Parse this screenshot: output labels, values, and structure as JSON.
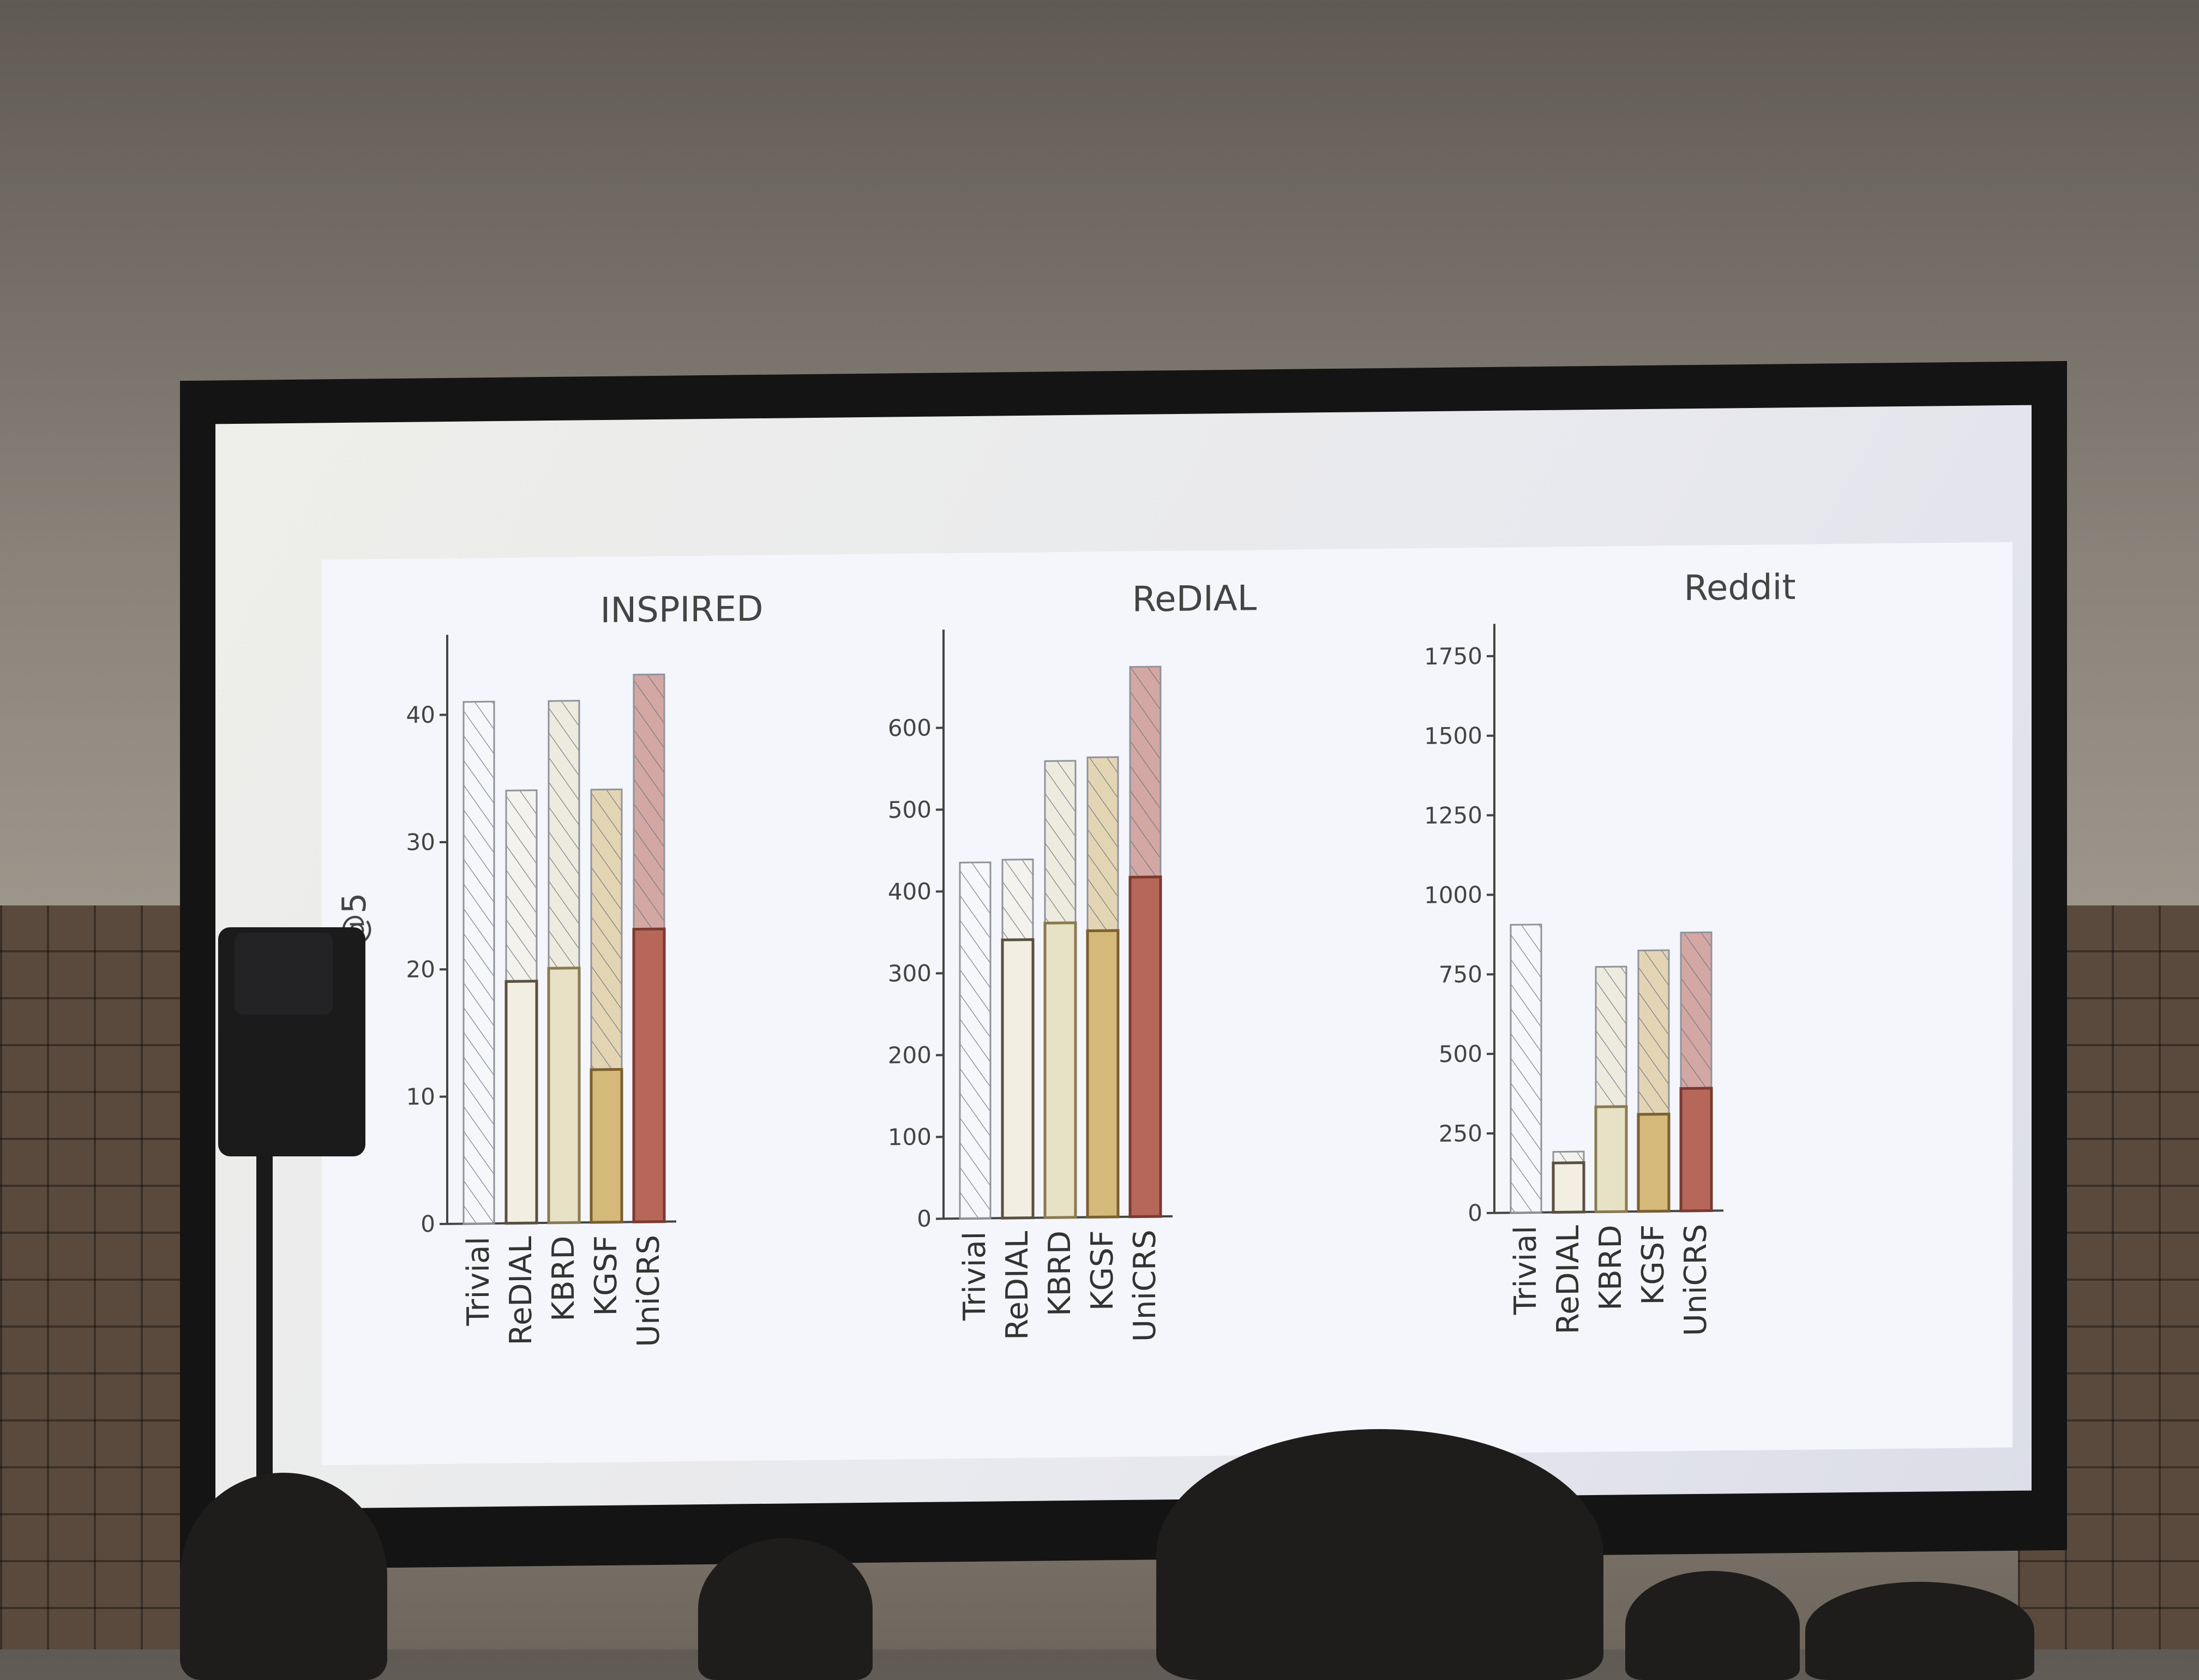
{
  "colors": {
    "Trivial": "#f7f8fb",
    "ReDIAL": "#f2efe2",
    "KBRD": "#e7e2c6",
    "KGSF": "#d4b97a",
    "UniCRS": "#b7665a",
    "edge_Trivial": "#8a8e96",
    "edge_ReDIAL": "#5a5040",
    "edge_KBRD": "#8a7a50",
    "edge_KGSF": "#7a6030",
    "edge_UniCRS": "#7a3a30"
  },
  "chart_data": [
    {
      "type": "bar",
      "title": "INSPIRED",
      "ylabel": "#HIT@5",
      "categories": [
        "Trivial",
        "ReDIAL",
        "KBRD",
        "KGSF",
        "UniCRS"
      ],
      "ylim": [
        0,
        45
      ],
      "yticks": [
        0,
        10,
        20,
        30,
        40
      ],
      "series": [
        {
          "values": [
            0,
            19,
            20,
            12,
            23
          ]
        },
        {
          "values": [
            41,
            34,
            41,
            34,
            43
          ]
        }
      ]
    },
    {
      "type": "bar",
      "title": "ReDIAL",
      "ylabel": "",
      "categories": [
        "Trivial",
        "ReDIAL",
        "KBRD",
        "KGSF",
        "UniCRS"
      ],
      "ylim": [
        0,
        700
      ],
      "yticks": [
        0,
        100,
        200,
        300,
        400,
        500,
        600
      ],
      "series": [
        {
          "values": [
            0,
            340,
            360,
            350,
            415
          ]
        },
        {
          "values": [
            435,
            438,
            558,
            562,
            672
          ]
        }
      ]
    },
    {
      "type": "bar",
      "title": "Reddit",
      "ylabel": "",
      "categories": [
        "Trivial",
        "ReDIAL",
        "KBRD",
        "KGSF",
        "UniCRS"
      ],
      "ylim": [
        0,
        1800
      ],
      "yticks": [
        0,
        250,
        500,
        750,
        1000,
        1250,
        1500,
        1750
      ],
      "series": [
        {
          "values": [
            0,
            155,
            330,
            305,
            385
          ]
        },
        {
          "values": [
            905,
            190,
            770,
            820,
            875
          ]
        }
      ]
    }
  ]
}
